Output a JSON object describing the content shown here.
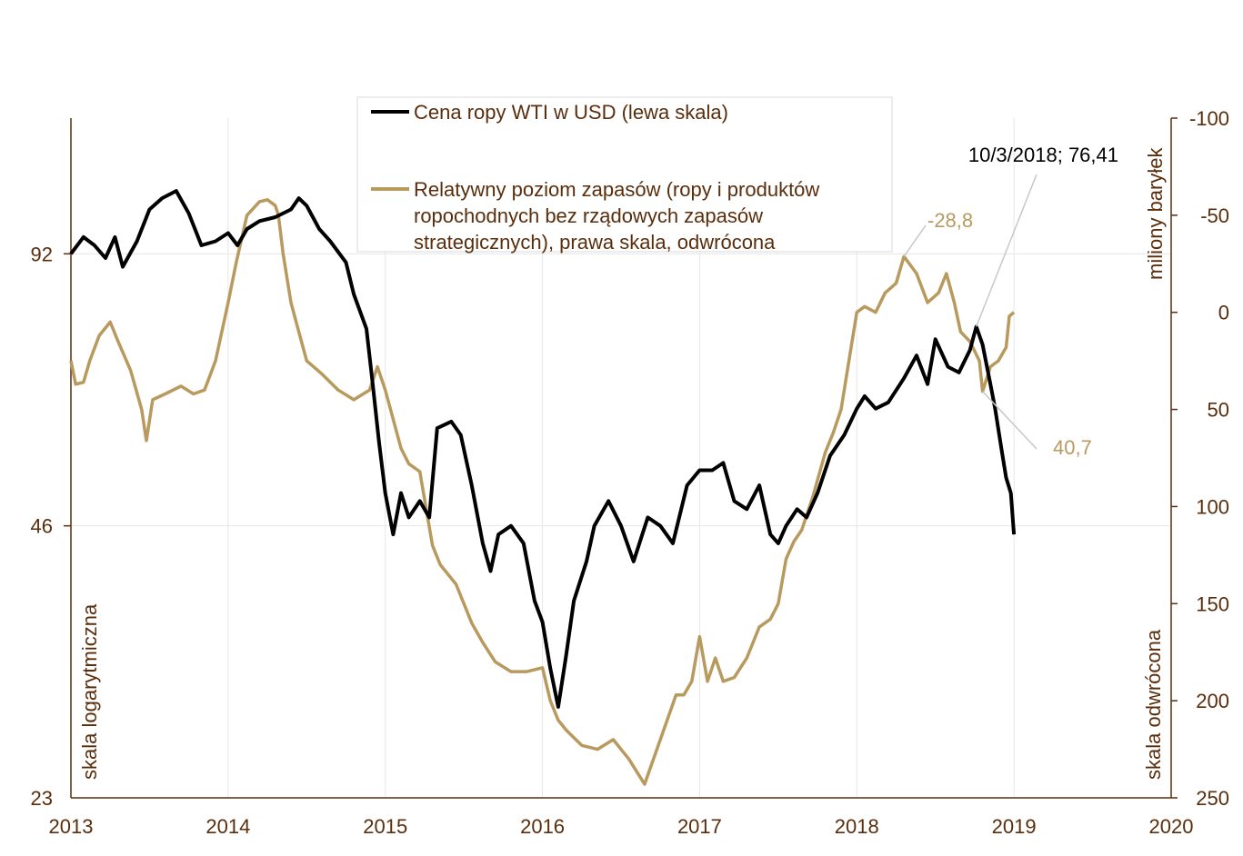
{
  "chart_data": {
    "type": "line",
    "x_axis": {
      "min": 2013,
      "max": 2020,
      "ticks": [
        "2013",
        "2014",
        "2015",
        "2016",
        "2017",
        "2018",
        "2019",
        "2020"
      ]
    },
    "left_axis": {
      "scale": "log",
      "min": 23,
      "max": 130,
      "ticks": [
        "23",
        "46",
        "92"
      ],
      "label": "skala logarytmiczna"
    },
    "right_axis": {
      "reversed": true,
      "min": -100,
      "max": 250,
      "ticks": [
        "-100",
        "-50",
        "0",
        "50",
        "100",
        "150",
        "200",
        "250"
      ],
      "title": "miliony baryłek",
      "label": "skala odwrócona"
    },
    "grid": true,
    "legend_position": "top-center",
    "series": [
      {
        "name": "Cena ropy WTI w USD (lewa skala)",
        "axis": "left",
        "color": "#000000",
        "points": [
          [
            2013.0,
            92
          ],
          [
            2013.08,
            96
          ],
          [
            2013.15,
            94
          ],
          [
            2013.22,
            91
          ],
          [
            2013.28,
            96
          ],
          [
            2013.33,
            89
          ],
          [
            2013.42,
            95
          ],
          [
            2013.5,
            103
          ],
          [
            2013.58,
            106
          ],
          [
            2013.67,
            108
          ],
          [
            2013.75,
            102
          ],
          [
            2013.83,
            94
          ],
          [
            2013.92,
            95
          ],
          [
            2014.0,
            97
          ],
          [
            2014.06,
            94
          ],
          [
            2014.12,
            98
          ],
          [
            2014.2,
            100
          ],
          [
            2014.3,
            101
          ],
          [
            2014.4,
            103
          ],
          [
            2014.45,
            106
          ],
          [
            2014.5,
            104
          ],
          [
            2014.58,
            98
          ],
          [
            2014.65,
            95
          ],
          [
            2014.75,
            90
          ],
          [
            2014.8,
            83
          ],
          [
            2014.88,
            76
          ],
          [
            2014.92,
            66
          ],
          [
            2014.96,
            57
          ],
          [
            2015.0,
            50
          ],
          [
            2015.05,
            45
          ],
          [
            2015.1,
            50
          ],
          [
            2015.15,
            47
          ],
          [
            2015.22,
            49
          ],
          [
            2015.28,
            47
          ],
          [
            2015.33,
            59
          ],
          [
            2015.42,
            60
          ],
          [
            2015.48,
            58
          ],
          [
            2015.55,
            51
          ],
          [
            2015.62,
            44
          ],
          [
            2015.67,
            41
          ],
          [
            2015.72,
            45
          ],
          [
            2015.8,
            46
          ],
          [
            2015.88,
            44
          ],
          [
            2015.95,
            38
          ],
          [
            2016.0,
            36
          ],
          [
            2016.05,
            32
          ],
          [
            2016.1,
            29
          ],
          [
            2016.15,
            33
          ],
          [
            2016.2,
            38
          ],
          [
            2016.28,
            42
          ],
          [
            2016.33,
            46
          ],
          [
            2016.42,
            49
          ],
          [
            2016.5,
            46
          ],
          [
            2016.58,
            42
          ],
          [
            2016.67,
            47
          ],
          [
            2016.75,
            46
          ],
          [
            2016.83,
            44
          ],
          [
            2016.92,
            51
          ],
          [
            2017.0,
            53
          ],
          [
            2017.08,
            53
          ],
          [
            2017.15,
            54
          ],
          [
            2017.22,
            49
          ],
          [
            2017.3,
            48
          ],
          [
            2017.38,
            51
          ],
          [
            2017.45,
            45
          ],
          [
            2017.5,
            44
          ],
          [
            2017.55,
            46
          ],
          [
            2017.62,
            48
          ],
          [
            2017.68,
            47
          ],
          [
            2017.75,
            50
          ],
          [
            2017.83,
            55
          ],
          [
            2017.92,
            58
          ],
          [
            2018.0,
            62
          ],
          [
            2018.05,
            64
          ],
          [
            2018.12,
            62
          ],
          [
            2018.2,
            63
          ],
          [
            2018.3,
            67
          ],
          [
            2018.38,
            71
          ],
          [
            2018.45,
            66
          ],
          [
            2018.5,
            74
          ],
          [
            2018.58,
            69
          ],
          [
            2018.65,
            68
          ],
          [
            2018.72,
            72
          ],
          [
            2018.76,
            76.41
          ],
          [
            2018.8,
            73
          ],
          [
            2018.85,
            66
          ],
          [
            2018.88,
            62
          ],
          [
            2018.92,
            56
          ],
          [
            2018.95,
            52
          ],
          [
            2018.98,
            50
          ],
          [
            2019.0,
            45
          ]
        ]
      },
      {
        "name": "Relatywny poziom zapasów (ropy i produktów ropochodnych bez rządowych zapasów strategicznych), prawa skala, odwrócona",
        "axis": "right",
        "color": "#b89a5e",
        "points": [
          [
            2013.0,
            25
          ],
          [
            2013.03,
            37
          ],
          [
            2013.08,
            36
          ],
          [
            2013.12,
            25
          ],
          [
            2013.18,
            12
          ],
          [
            2013.25,
            5
          ],
          [
            2013.3,
            15
          ],
          [
            2013.38,
            30
          ],
          [
            2013.45,
            50
          ],
          [
            2013.48,
            66
          ],
          [
            2013.52,
            45
          ],
          [
            2013.6,
            42
          ],
          [
            2013.7,
            38
          ],
          [
            2013.78,
            42
          ],
          [
            2013.85,
            40
          ],
          [
            2013.92,
            25
          ],
          [
            2014.0,
            -5
          ],
          [
            2014.05,
            -25
          ],
          [
            2014.12,
            -50
          ],
          [
            2014.2,
            -57
          ],
          [
            2014.25,
            -58
          ],
          [
            2014.3,
            -55
          ],
          [
            2014.32,
            -50
          ],
          [
            2014.35,
            -30
          ],
          [
            2014.4,
            -5
          ],
          [
            2014.45,
            10
          ],
          [
            2014.5,
            25
          ],
          [
            2014.6,
            32
          ],
          [
            2014.7,
            40
          ],
          [
            2014.8,
            45
          ],
          [
            2014.9,
            40
          ],
          [
            2014.95,
            28
          ],
          [
            2015.0,
            40
          ],
          [
            2015.05,
            55
          ],
          [
            2015.1,
            70
          ],
          [
            2015.15,
            78
          ],
          [
            2015.22,
            82
          ],
          [
            2015.3,
            120
          ],
          [
            2015.35,
            130
          ],
          [
            2015.45,
            140
          ],
          [
            2015.55,
            160
          ],
          [
            2015.62,
            170
          ],
          [
            2015.7,
            180
          ],
          [
            2015.8,
            185
          ],
          [
            2015.9,
            185
          ],
          [
            2016.0,
            183
          ],
          [
            2016.05,
            200
          ],
          [
            2016.1,
            210
          ],
          [
            2016.15,
            215
          ],
          [
            2016.25,
            223
          ],
          [
            2016.35,
            225
          ],
          [
            2016.45,
            220
          ],
          [
            2016.55,
            230
          ],
          [
            2016.65,
            243
          ],
          [
            2016.75,
            220
          ],
          [
            2016.85,
            197
          ],
          [
            2016.9,
            197
          ],
          [
            2016.95,
            190
          ],
          [
            2017.0,
            167
          ],
          [
            2017.05,
            190
          ],
          [
            2017.1,
            178
          ],
          [
            2017.15,
            190
          ],
          [
            2017.22,
            188
          ],
          [
            2017.3,
            178
          ],
          [
            2017.38,
            162
          ],
          [
            2017.45,
            158
          ],
          [
            2017.5,
            150
          ],
          [
            2017.55,
            127
          ],
          [
            2017.6,
            118
          ],
          [
            2017.65,
            112
          ],
          [
            2017.72,
            95
          ],
          [
            2017.8,
            72
          ],
          [
            2017.85,
            62
          ],
          [
            2017.9,
            50
          ],
          [
            2017.95,
            25
          ],
          [
            2018.0,
            0
          ],
          [
            2018.05,
            -3
          ],
          [
            2018.12,
            0
          ],
          [
            2018.18,
            -10
          ],
          [
            2018.25,
            -15
          ],
          [
            2018.3,
            -28.8
          ],
          [
            2018.38,
            -20
          ],
          [
            2018.45,
            -5
          ],
          [
            2018.52,
            -10
          ],
          [
            2018.57,
            -20
          ],
          [
            2018.62,
            -5
          ],
          [
            2018.66,
            10
          ],
          [
            2018.72,
            15
          ],
          [
            2018.78,
            25
          ],
          [
            2018.8,
            40.7
          ],
          [
            2018.85,
            28
          ],
          [
            2018.9,
            25
          ],
          [
            2018.95,
            18
          ],
          [
            2018.97,
            2
          ],
          [
            2019.0,
            0
          ]
        ]
      }
    ],
    "annotations": [
      {
        "text": "10/3/2018; 76,41",
        "series": 0,
        "x": 2018.76,
        "y": 76.41
      },
      {
        "text": "-28,8",
        "series": 1,
        "x": 2018.3,
        "y": -28.8
      },
      {
        "text": "40,7",
        "series": 1,
        "x": 2018.8,
        "y": 40.7
      }
    ]
  }
}
